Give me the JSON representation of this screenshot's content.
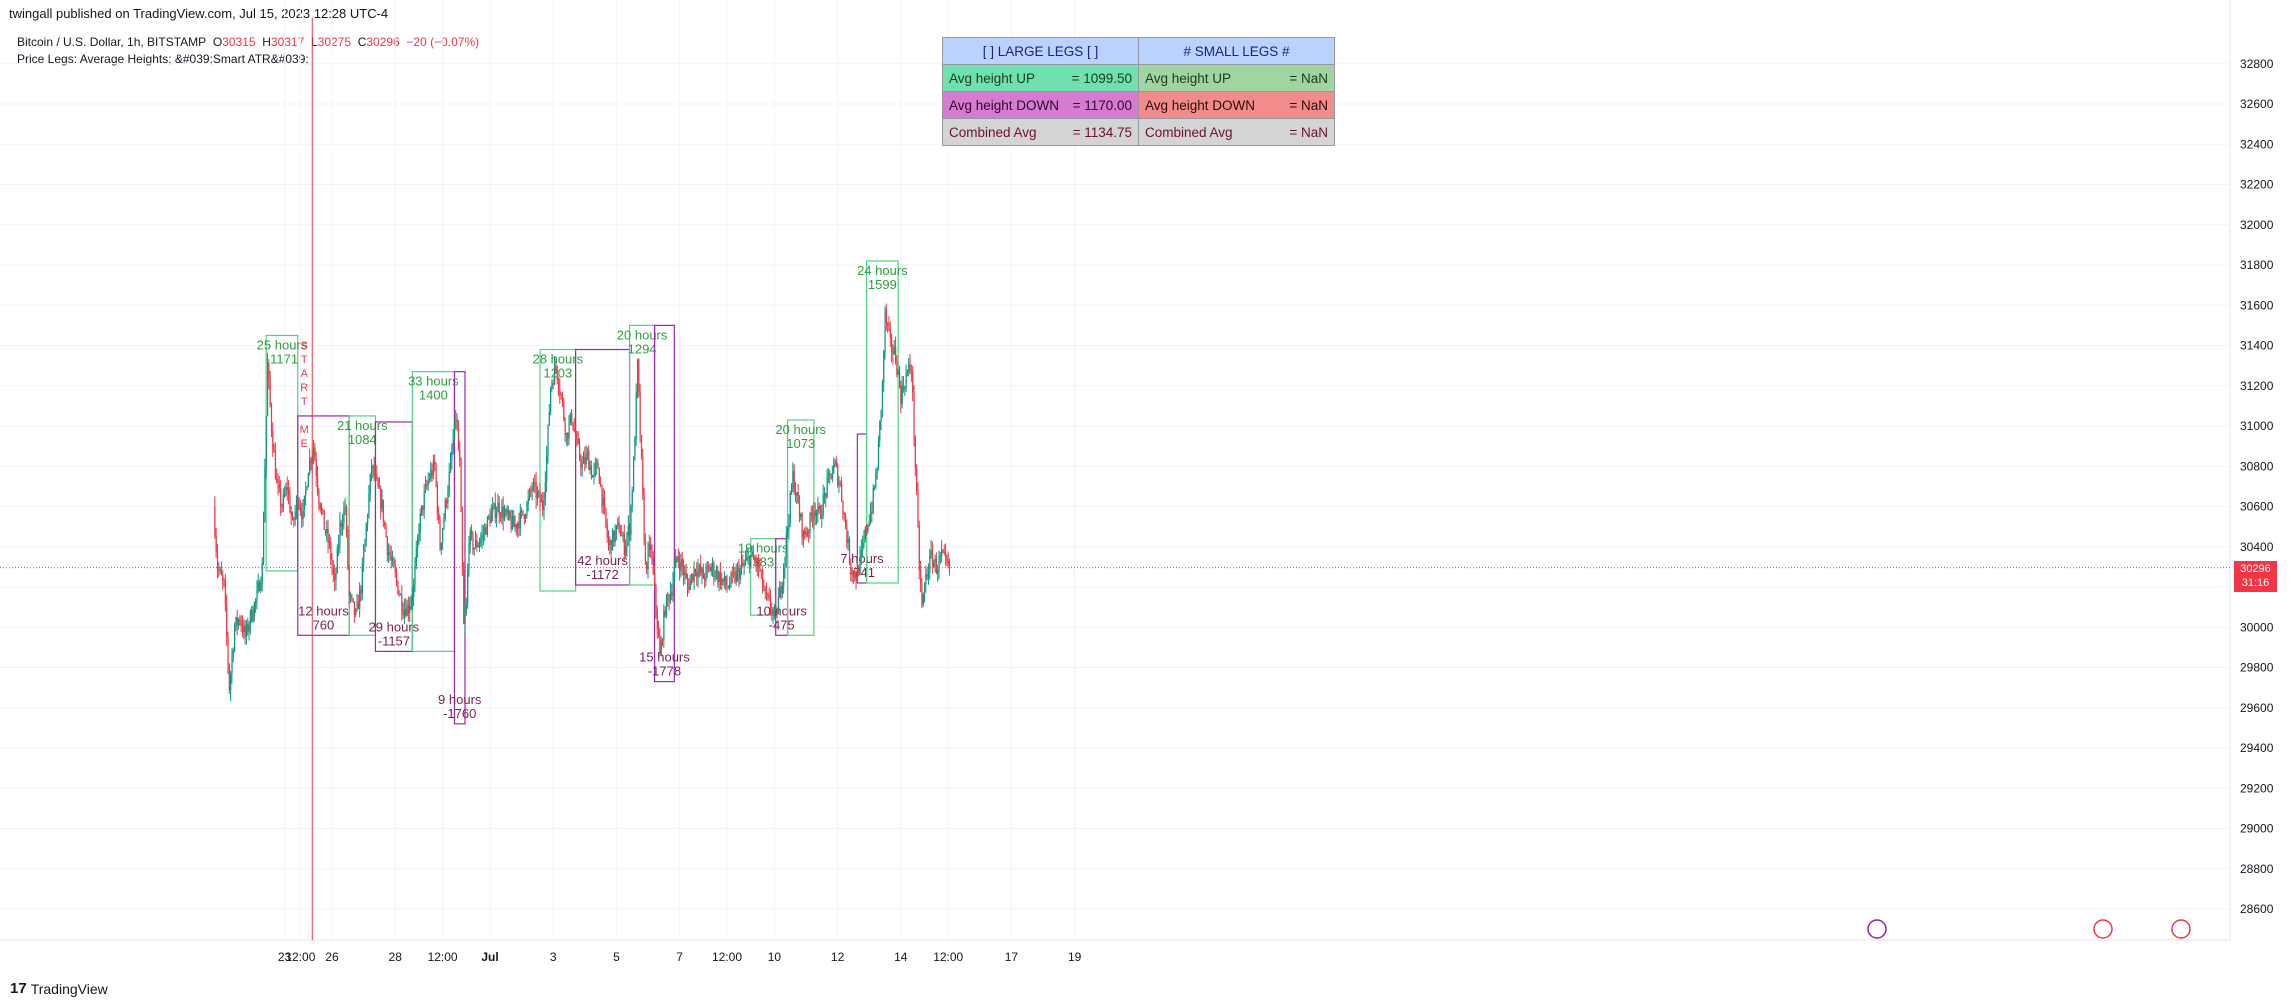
{
  "header": {
    "published": "twingall published on TradingView.com, Jul 15, 2023 12:28 UTC-4",
    "symbol": "Bitcoin / U.S. Dollar, 1h, BITSTAMP",
    "o_label": "O",
    "o_value": "30315",
    "h_label": "H",
    "h_value": "30317",
    "l_label": "L",
    "l_value": "30275",
    "c_label": "C",
    "c_value": "30296",
    "change": "−20 (−0.07%)",
    "indicator": "Price Legs: Average Heights; &#039;Smart ATR&#039;"
  },
  "table": {
    "large_header": "[ ] LARGE LEGS [ ]",
    "small_header": "# SMALL LEGS #",
    "rows": [
      {
        "l_label": "Avg height UP",
        "l_value": "= 1099.50",
        "s_label": "Avg height UP",
        "s_value": "= NaN"
      },
      {
        "l_label": "Avg height DOWN",
        "l_value": "= 1170.00",
        "s_label": "Avg height DOWN",
        "s_value": "= NaN"
      },
      {
        "l_label": "Combined Avg",
        "l_value": "= 1134.75",
        "s_label": "Combined Avg",
        "s_value": "= NaN"
      }
    ]
  },
  "price_tag": {
    "price": "30296",
    "countdown": "31:16"
  },
  "start_marker": "START ME",
  "logo_text": "TradingView",
  "colors": {
    "up": "#089981",
    "down": "#f23645",
    "leg_up": "#4fd37f",
    "leg_down": "#9c27b0",
    "leg_text_up": "#2e9e3e",
    "leg_text_down": "#7b1f4f",
    "start_line": "#f23645"
  },
  "chart_data": {
    "type": "candlestick",
    "y_axis": {
      "ticks": [
        28600,
        28800,
        29000,
        29200,
        29400,
        29600,
        29800,
        30000,
        30200,
        30400,
        30600,
        30800,
        31000,
        31200,
        31400,
        31600,
        31800,
        32000,
        32200,
        32400,
        32600,
        32800
      ],
      "side": "right"
    },
    "x_axis": {
      "ticks": [
        "23",
        "12:00",
        "26",
        "28",
        "12:00",
        "Jul",
        "3",
        "5",
        "7",
        "12:00",
        "10",
        "12",
        "14",
        "12:00",
        "17",
        "19"
      ],
      "tick_hours": [
        -36,
        -24,
        0,
        48,
        84,
        120,
        168,
        216,
        264,
        300,
        336,
        384,
        432,
        468,
        516,
        564
      ]
    },
    "last_price": 30296,
    "price_path": [
      {
        "t": -90,
        "p": 30600
      },
      {
        "t": -87,
        "p": 30300
      },
      {
        "t": -82,
        "p": 30200
      },
      {
        "t": -78,
        "p": 29700
      },
      {
        "t": -74,
        "p": 30000
      },
      {
        "t": -70,
        "p": 30050
      },
      {
        "t": -66,
        "p": 29950
      },
      {
        "t": -62,
        "p": 30050
      },
      {
        "t": -57,
        "p": 30150
      },
      {
        "t": -53,
        "p": 30300
      },
      {
        "t": -49,
        "p": 31300
      },
      {
        "t": -46,
        "p": 31000
      },
      {
        "t": -42,
        "p": 30700
      },
      {
        "t": -38,
        "p": 30600
      },
      {
        "t": -34,
        "p": 30700
      },
      {
        "t": -30,
        "p": 30500
      },
      {
        "t": -26,
        "p": 30650
      },
      {
        "t": -22,
        "p": 30550
      },
      {
        "t": -18,
        "p": 30800
      },
      {
        "t": -14,
        "p": 30900
      },
      {
        "t": -10,
        "p": 30650
      },
      {
        "t": -6,
        "p": 30500
      },
      {
        "t": -2,
        "p": 30400
      },
      {
        "t": 2,
        "p": 30200
      },
      {
        "t": 6,
        "p": 30500
      },
      {
        "t": 10,
        "p": 30600
      },
      {
        "t": 13,
        "p": 30150
      },
      {
        "t": 18,
        "p": 30050
      },
      {
        "t": 22,
        "p": 30200
      },
      {
        "t": 26,
        "p": 30500
      },
      {
        "t": 30,
        "p": 30800
      },
      {
        "t": 34,
        "p": 30700
      },
      {
        "t": 38,
        "p": 30600
      },
      {
        "t": 42,
        "p": 30400
      },
      {
        "t": 46,
        "p": 30300
      },
      {
        "t": 50,
        "p": 30200
      },
      {
        "t": 54,
        "p": 30100
      },
      {
        "t": 58,
        "p": 30100
      },
      {
        "t": 62,
        "p": 30200
      },
      {
        "t": 66,
        "p": 30500
      },
      {
        "t": 70,
        "p": 30650
      },
      {
        "t": 74,
        "p": 30750
      },
      {
        "t": 78,
        "p": 30800
      },
      {
        "t": 82,
        "p": 30400
      },
      {
        "t": 86,
        "p": 30600
      },
      {
        "t": 90,
        "p": 30800
      },
      {
        "t": 94,
        "p": 31050
      },
      {
        "t": 97,
        "p": 30800
      },
      {
        "t": 100,
        "p": 30000
      },
      {
        "t": 102,
        "p": 30100
      },
      {
        "t": 104,
        "p": 30450
      },
      {
        "t": 108,
        "p": 30400
      },
      {
        "t": 114,
        "p": 30450
      },
      {
        "t": 120,
        "p": 30550
      },
      {
        "t": 126,
        "p": 30600
      },
      {
        "t": 132,
        "p": 30550
      },
      {
        "t": 138,
        "p": 30500
      },
      {
        "t": 144,
        "p": 30550
      },
      {
        "t": 148,
        "p": 30600
      },
      {
        "t": 152,
        "p": 30700
      },
      {
        "t": 156,
        "p": 30650
      },
      {
        "t": 160,
        "p": 30600
      },
      {
        "t": 163,
        "p": 30850
      },
      {
        "t": 166,
        "p": 31200
      },
      {
        "t": 170,
        "p": 31300
      },
      {
        "t": 174,
        "p": 31150
      },
      {
        "t": 178,
        "p": 30950
      },
      {
        "t": 182,
        "p": 31050
      },
      {
        "t": 186,
        "p": 30900
      },
      {
        "t": 190,
        "p": 30800
      },
      {
        "t": 194,
        "p": 30850
      },
      {
        "t": 198,
        "p": 30750
      },
      {
        "t": 202,
        "p": 30800
      },
      {
        "t": 206,
        "p": 30600
      },
      {
        "t": 210,
        "p": 30400
      },
      {
        "t": 214,
        "p": 30450
      },
      {
        "t": 218,
        "p": 30500
      },
      {
        "t": 222,
        "p": 30400
      },
      {
        "t": 226,
        "p": 30500
      },
      {
        "t": 229,
        "p": 30800
      },
      {
        "t": 232,
        "p": 31300
      },
      {
        "t": 235,
        "p": 30800
      },
      {
        "t": 238,
        "p": 30300
      },
      {
        "t": 242,
        "p": 30400
      },
      {
        "t": 246,
        "p": 30100
      },
      {
        "t": 249,
        "p": 29850
      },
      {
        "t": 253,
        "p": 30100
      },
      {
        "t": 258,
        "p": 30200
      },
      {
        "t": 262,
        "p": 30350
      },
      {
        "t": 266,
        "p": 30300
      },
      {
        "t": 270,
        "p": 30200
      },
      {
        "t": 276,
        "p": 30300
      },
      {
        "t": 282,
        "p": 30250
      },
      {
        "t": 288,
        "p": 30300
      },
      {
        "t": 294,
        "p": 30250
      },
      {
        "t": 300,
        "p": 30200
      },
      {
        "t": 306,
        "p": 30250
      },
      {
        "t": 312,
        "p": 30300
      },
      {
        "t": 318,
        "p": 30350
      },
      {
        "t": 324,
        "p": 30300
      },
      {
        "t": 329,
        "p": 30150
      },
      {
        "t": 333,
        "p": 30100
      },
      {
        "t": 337,
        "p": 30050
      },
      {
        "t": 342,
        "p": 30250
      },
      {
        "t": 346,
        "p": 30500
      },
      {
        "t": 350,
        "p": 30750
      },
      {
        "t": 354,
        "p": 30600
      },
      {
        "t": 358,
        "p": 30450
      },
      {
        "t": 362,
        "p": 30500
      },
      {
        "t": 366,
        "p": 30600
      },
      {
        "t": 370,
        "p": 30550
      },
      {
        "t": 374,
        "p": 30650
      },
      {
        "t": 378,
        "p": 30750
      },
      {
        "t": 382,
        "p": 30800
      },
      {
        "t": 386,
        "p": 30700
      },
      {
        "t": 390,
        "p": 30500
      },
      {
        "t": 394,
        "p": 30300
      },
      {
        "t": 398,
        "p": 30250
      },
      {
        "t": 402,
        "p": 30350
      },
      {
        "t": 406,
        "p": 30500
      },
      {
        "t": 410,
        "p": 30600
      },
      {
        "t": 414,
        "p": 30800
      },
      {
        "t": 418,
        "p": 31200
      },
      {
        "t": 420,
        "p": 31550
      },
      {
        "t": 424,
        "p": 31400
      },
      {
        "t": 428,
        "p": 31350
      },
      {
        "t": 432,
        "p": 31150
      },
      {
        "t": 436,
        "p": 31250
      },
      {
        "t": 440,
        "p": 31300
      },
      {
        "t": 443,
        "p": 30800
      },
      {
        "t": 446,
        "p": 30300
      },
      {
        "t": 448,
        "p": 30100
      },
      {
        "t": 451,
        "p": 30250
      },
      {
        "t": 455,
        "p": 30350
      },
      {
        "t": 459,
        "p": 30300
      },
      {
        "t": 463,
        "p": 30350
      },
      {
        "t": 467,
        "p": 30300
      },
      {
        "t": 469,
        "p": 30296
      }
    ],
    "legs": [
      {
        "dir": "up",
        "t0": -50,
        "t1": -26,
        "lo": 30280,
        "hi": 31450,
        "hours": "25 hours",
        "height": "-1171"
      },
      {
        "dir": "down",
        "t0": -26,
        "t1": 13,
        "lo": 29960,
        "hi": 31050,
        "hours": "12 hours",
        "height": "760"
      },
      {
        "dir": "up",
        "t0": 13,
        "t1": 33,
        "lo": 29960,
        "hi": 31050,
        "hours": "21 hours",
        "height": "1084"
      },
      {
        "dir": "down",
        "t0": 33,
        "t1": 61,
        "lo": 29880,
        "hi": 31020,
        "hours": "29 hours",
        "height": "-1157"
      },
      {
        "dir": "up",
        "t0": 61,
        "t1": 93,
        "lo": 29880,
        "hi": 31270,
        "hours": "33 hours",
        "height": "1400"
      },
      {
        "dir": "down",
        "t0": 93,
        "t1": 101,
        "lo": 29520,
        "hi": 31270,
        "hours": "9 hours",
        "height": "-1760"
      },
      {
        "dir": "up",
        "t0": 158,
        "t1": 185,
        "lo": 30180,
        "hi": 31380,
        "hours": "28 hours",
        "height": "1203"
      },
      {
        "dir": "down",
        "t0": 185,
        "t1": 226,
        "lo": 30210,
        "hi": 31380,
        "hours": "42 hours",
        "height": "-1172"
      },
      {
        "dir": "up",
        "t0": 226,
        "t1": 245,
        "lo": 30210,
        "hi": 31500,
        "hours": "20 hours",
        "height": "1294"
      },
      {
        "dir": "down",
        "t0": 245,
        "t1": 260,
        "lo": 29730,
        "hi": 31500,
        "hours": "15 hours",
        "height": "-1778"
      },
      {
        "dir": "up",
        "t0": 318,
        "t1": 337,
        "lo": 30060,
        "hi": 30440,
        "hours": "19 hours",
        "height": "383"
      },
      {
        "dir": "down",
        "t0": 337,
        "t1": 346,
        "lo": 29960,
        "hi": 30440,
        "hours": "10 hours",
        "height": "-475"
      },
      {
        "dir": "up",
        "t0": 346,
        "t1": 366,
        "lo": 29960,
        "hi": 31030,
        "hours": "20 hours",
        "height": "1073"
      },
      {
        "dir": "down",
        "t0": 399,
        "t1": 406,
        "lo": 30220,
        "hi": 30960,
        "hours": "7 hours",
        "height": "-741"
      },
      {
        "dir": "up",
        "t0": 406,
        "t1": 430,
        "lo": 30220,
        "hi": 31820,
        "hours": "24 hours",
        "height": "1599"
      }
    ]
  }
}
